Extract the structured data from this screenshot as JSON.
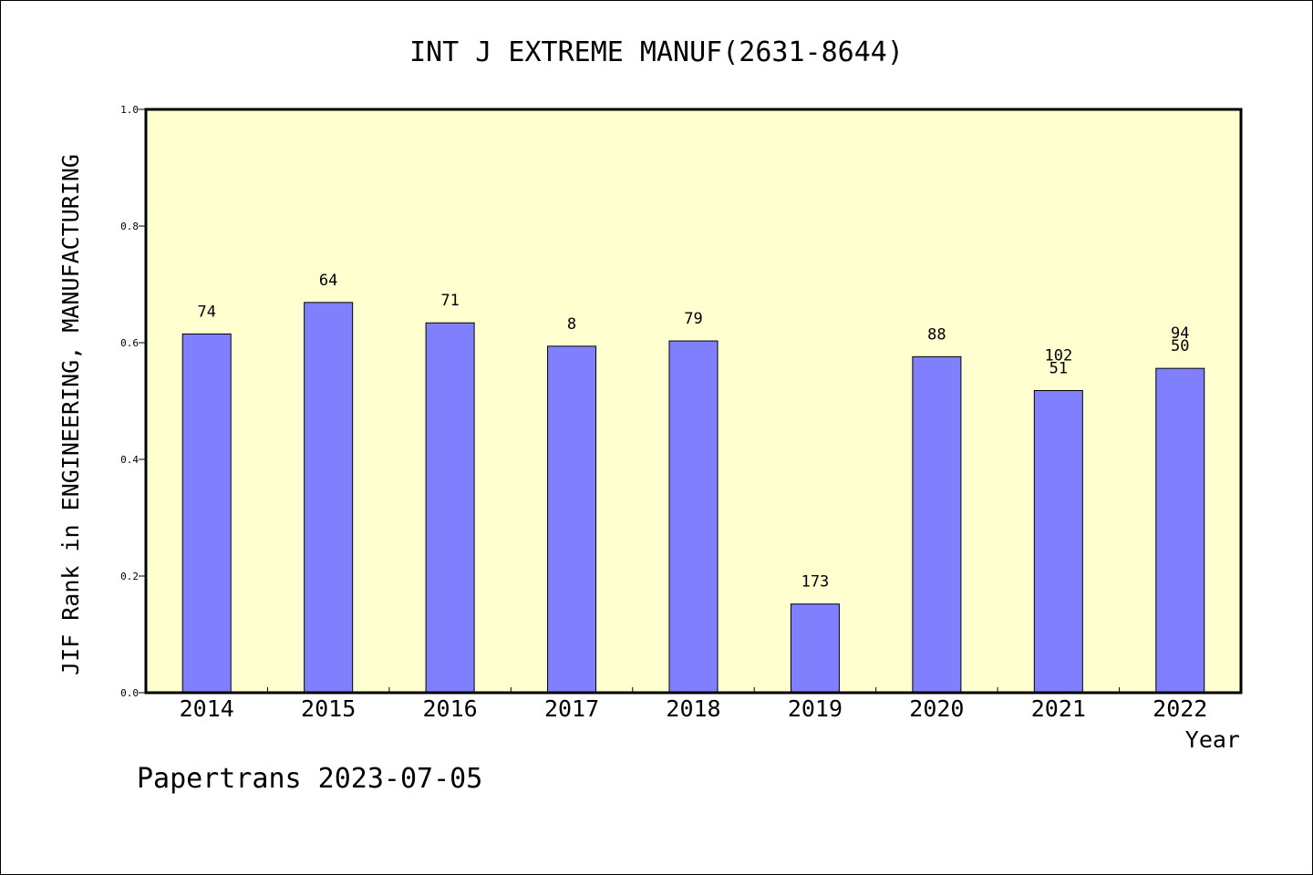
{
  "chart_data": {
    "type": "bar",
    "title": "INT J EXTREME MANUF(2631-8644)",
    "ylabel": "JIF Rank in ENGINEERING, MANUFACTURING",
    "xlabel": "Year",
    "footer": "Papertrans 2023-07-05",
    "ylim": [
      0.0,
      1.0
    ],
    "yticks": [
      "0.0",
      "0.2",
      "0.4",
      "0.6",
      "0.8",
      "1.0"
    ],
    "categories": [
      "2014",
      "2015",
      "2016",
      "2017",
      "2018",
      "2019",
      "2020",
      "2021",
      "2022"
    ],
    "values": [
      0.615,
      0.669,
      0.634,
      0.594,
      0.603,
      0.152,
      0.576,
      0.518,
      0.556
    ],
    "labels": [
      [
        "74"
      ],
      [
        "64"
      ],
      [
        "71"
      ],
      [
        "8"
      ],
      [
        "79"
      ],
      [
        "173"
      ],
      [
        "88"
      ],
      [
        "102",
        "51"
      ],
      [
        "94",
        "50"
      ]
    ],
    "grid": false,
    "colors": {
      "plot_bg": "#ffffd0",
      "bar": "#8080ff",
      "bar_stroke": "#000000"
    }
  }
}
